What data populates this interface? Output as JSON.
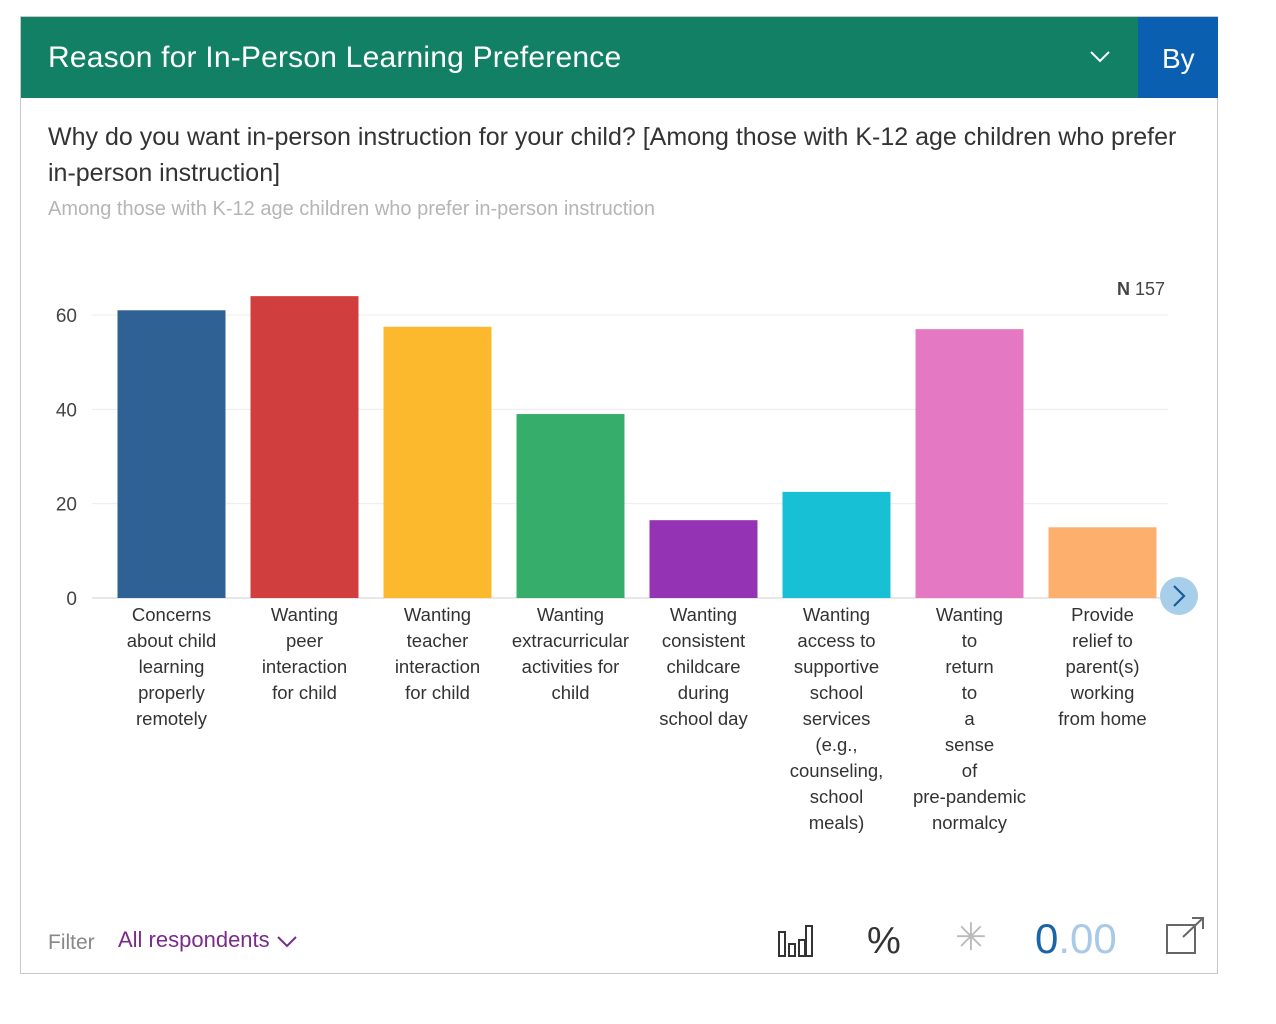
{
  "header": {
    "title": "Reason for In-Person Learning Preference",
    "by_label": "By"
  },
  "question": "Why do you want in-person instruction for your child? [Among those with K-12 age children who prefer in-person instruction]",
  "subtitle": "Among those with K-12 age children who prefer in-person instruction",
  "n_label": "N",
  "n_value": "157",
  "chart_data": {
    "type": "bar",
    "title": "",
    "xlabel": "",
    "ylabel": "",
    "ylim": [
      0,
      60
    ],
    "y_ticks": [
      "0",
      "20",
      "40",
      "60"
    ],
    "grid": true,
    "categories": [
      [
        "Concerns",
        "about child",
        "learning",
        "properly",
        "remotely"
      ],
      [
        "Wanting",
        "peer",
        "interaction",
        "for child"
      ],
      [
        "Wanting",
        "teacher",
        "interaction",
        "for child"
      ],
      [
        "Wanting",
        "extracurricular",
        "activities for",
        "child"
      ],
      [
        "Wanting",
        "consistent",
        "childcare",
        "during",
        "school day"
      ],
      [
        "Wanting",
        "access to",
        "supportive",
        "school",
        "services",
        "(e.g.,",
        "counseling,",
        "school",
        "meals)"
      ],
      [
        "Wanting",
        "to",
        "return",
        "to",
        "a",
        "sense",
        "of",
        "pre-pandemic",
        "normalcy"
      ],
      [
        "Provide",
        "relief to",
        "parent(s)",
        "working",
        "from home"
      ]
    ],
    "values": [
      61,
      64,
      57.5,
      39,
      16.5,
      22.5,
      57,
      15
    ],
    "colors": [
      "#2f6194",
      "#d03f3e",
      "#fdb92e",
      "#37ad6b",
      "#9434b5",
      "#17c0d4",
      "#e478c3",
      "#fdb06d"
    ]
  },
  "footer": {
    "filter_label": "Filter",
    "filter_value": "All respondents",
    "percent_symbol": "%",
    "asterisk_symbol": "✳",
    "decimals_main": "0",
    "decimals_rest": ".00"
  },
  "icons": {
    "dropdown": "chevron-down-icon",
    "next": "chevron-right-icon",
    "chart_type": "bar-chart-icon",
    "export": "external-link-icon"
  }
}
